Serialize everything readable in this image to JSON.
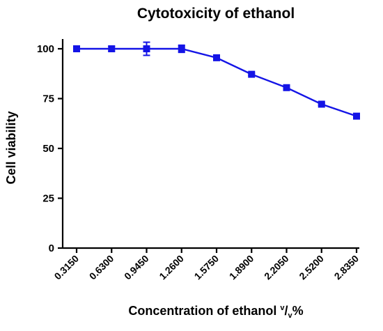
{
  "chart_data": {
    "type": "line",
    "title": "Cytotoxicity of ethanol",
    "xlabel": {
      "prefix": "Concentration of ethanol ",
      "sup": "v",
      "slash": "/",
      "sub": "v",
      "suffix": "%"
    },
    "ylabel": "Cell viability",
    "categories": [
      "0.3150",
      "0.6300",
      "0.9450",
      "1.2600",
      "1.5750",
      "1.8900",
      "2.2050",
      "2.5200",
      "2.8350"
    ],
    "series": [
      {
        "values": [
          100,
          100,
          100,
          100,
          95.5,
          87.2,
          80.5,
          72.2,
          66.2
        ],
        "errors": [
          0,
          1.2,
          3.3,
          1.8,
          1.0,
          0.6,
          0.5,
          0.6,
          0.6
        ],
        "color": "#1414e6",
        "marker": "square"
      }
    ],
    "ylim": [
      0,
      100
    ],
    "yticks": [
      0,
      25,
      50,
      75,
      100
    ],
    "grid": false
  }
}
